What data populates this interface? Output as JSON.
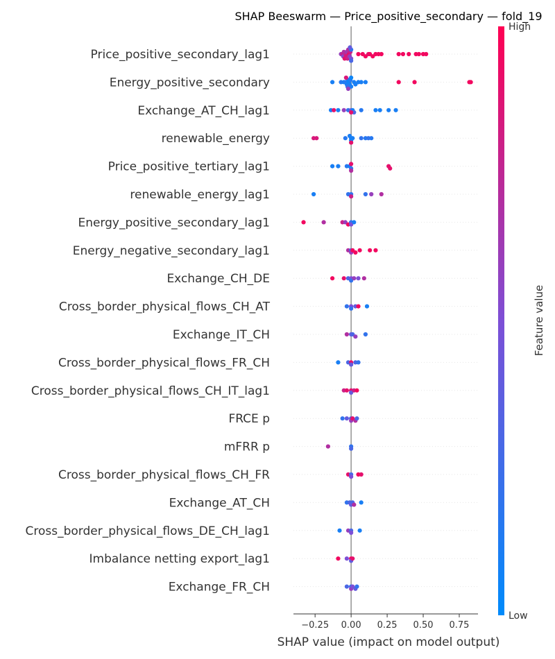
{
  "chart_data": {
    "type": "scatter",
    "subtype": "beeswarm",
    "title": "SHAP Beeswarm — Price_positive_secondary — fold_19",
    "xlabel": "SHAP value (impact on model output)",
    "ylabel": "",
    "xlim": [
      -0.4,
      0.88
    ],
    "x_ticks": [
      -0.25,
      0.0,
      0.25,
      0.5,
      0.75
    ],
    "x_tick_labels": [
      "−0.25",
      "0.00",
      "0.25",
      "0.50",
      "0.75"
    ],
    "grid": false,
    "legend": "none",
    "colorbar": {
      "label": "Feature value",
      "high_label": "High",
      "low_label": "Low",
      "low_color": "#008bfb",
      "high_color": "#ff0052"
    },
    "features": [
      {
        "name": "Price_positive_secondary_lag1",
        "points": [
          [
            -0.07,
            0.6
          ],
          [
            -0.06,
            0.8
          ],
          [
            -0.055,
            0.55
          ],
          [
            -0.05,
            0.7
          ],
          [
            -0.045,
            0.9
          ],
          [
            -0.04,
            0.75
          ],
          [
            -0.035,
            0.85
          ],
          [
            -0.03,
            0.65
          ],
          [
            -0.025,
            0.8
          ],
          [
            -0.02,
            0.7
          ],
          [
            -0.015,
            0.9
          ],
          [
            -0.01,
            0.6
          ],
          [
            -0.005,
            0.8
          ],
          [
            0.0,
            0.5
          ],
          [
            0.0,
            0.2
          ],
          [
            0.0,
            0.3
          ],
          [
            -0.008,
            0.4
          ],
          [
            0.05,
            0.95
          ],
          [
            0.08,
            0.95
          ],
          [
            0.1,
            0.95
          ],
          [
            0.12,
            0.9
          ],
          [
            0.13,
            0.95
          ],
          [
            0.15,
            0.95
          ],
          [
            0.17,
            0.95
          ],
          [
            0.19,
            0.95
          ],
          [
            0.21,
            0.95
          ],
          [
            0.33,
            0.95
          ],
          [
            0.36,
            0.95
          ],
          [
            0.4,
            0.95
          ],
          [
            0.45,
            0.95
          ],
          [
            0.47,
            0.95
          ],
          [
            0.5,
            0.95
          ],
          [
            0.52,
            0.95
          ]
        ]
      },
      {
        "name": "Energy_positive_secondary",
        "points": [
          [
            -0.13,
            0.1
          ],
          [
            -0.07,
            0.15
          ],
          [
            -0.05,
            0.1
          ],
          [
            -0.04,
            0.15
          ],
          [
            -0.03,
            0.1
          ],
          [
            -0.02,
            0.1
          ],
          [
            -0.015,
            0.05
          ],
          [
            -0.01,
            0.1
          ],
          [
            -0.005,
            0.15
          ],
          [
            0.0,
            0.1
          ],
          [
            0.0,
            0.05
          ],
          [
            -0.025,
            0.2
          ],
          [
            0.02,
            0.1
          ],
          [
            0.03,
            0.1
          ],
          [
            0.05,
            0.1
          ],
          [
            0.07,
            0.1
          ],
          [
            0.1,
            0.1
          ],
          [
            -0.035,
            0.85
          ],
          [
            -0.02,
            0.6
          ],
          [
            0.33,
            0.95
          ],
          [
            0.44,
            0.95
          ],
          [
            0.82,
            0.95
          ],
          [
            0.83,
            0.95
          ]
        ]
      },
      {
        "name": "Exchange_AT_CH_lag1",
        "points": [
          [
            -0.14,
            0.1
          ],
          [
            -0.12,
            0.9
          ],
          [
            -0.09,
            0.1
          ],
          [
            -0.05,
            0.6
          ],
          [
            -0.02,
            0.2
          ],
          [
            0.0,
            0.5
          ],
          [
            0.01,
            0.1
          ],
          [
            0.02,
            0.3
          ],
          [
            0.07,
            0.15
          ],
          [
            0.17,
            0.1
          ],
          [
            0.2,
            0.1
          ],
          [
            0.26,
            0.1
          ],
          [
            0.31,
            0.1
          ],
          [
            0.0,
            0.9
          ]
        ]
      },
      {
        "name": "renewable_energy",
        "points": [
          [
            -0.26,
            0.85
          ],
          [
            -0.24,
            0.85
          ],
          [
            -0.04,
            0.15
          ],
          [
            0.0,
            0.2
          ],
          [
            0.0,
            0.05
          ],
          [
            -0.01,
            0.1
          ],
          [
            0.01,
            0.1
          ],
          [
            0.07,
            0.2
          ],
          [
            0.1,
            0.15
          ],
          [
            0.12,
            0.2
          ],
          [
            0.14,
            0.15
          ],
          [
            0.0,
            0.9
          ]
        ]
      },
      {
        "name": "Price_positive_tertiary_lag1",
        "points": [
          [
            -0.13,
            0.1
          ],
          [
            -0.09,
            0.1
          ],
          [
            -0.03,
            0.15
          ],
          [
            -0.01,
            0.1
          ],
          [
            0.0,
            0.2
          ],
          [
            0.0,
            0.9
          ],
          [
            0.0,
            0.7
          ],
          [
            0.26,
            0.9
          ],
          [
            0.27,
            0.9
          ]
        ]
      },
      {
        "name": "renewable_energy_lag1",
        "points": [
          [
            -0.26,
            0.1
          ],
          [
            -0.02,
            0.2
          ],
          [
            0.0,
            0.2
          ],
          [
            0.0,
            0.8
          ],
          [
            0.1,
            0.2
          ],
          [
            0.14,
            0.6
          ],
          [
            0.21,
            0.7
          ]
        ]
      },
      {
        "name": "Energy_positive_secondary_lag1",
        "points": [
          [
            -0.33,
            0.95
          ],
          [
            -0.19,
            0.7
          ],
          [
            -0.06,
            0.8
          ],
          [
            -0.04,
            0.6
          ],
          [
            -0.02,
            0.95
          ],
          [
            0.0,
            0.2
          ],
          [
            0.0,
            0.5
          ],
          [
            0.02,
            0.1
          ]
        ]
      },
      {
        "name": "Energy_negative_secondary_lag1",
        "points": [
          [
            -0.02,
            0.7
          ],
          [
            0.0,
            0.3
          ],
          [
            0.0,
            0.6
          ],
          [
            0.01,
            0.95
          ],
          [
            0.03,
            0.95
          ],
          [
            0.06,
            0.95
          ],
          [
            0.13,
            0.95
          ],
          [
            0.17,
            0.95
          ]
        ]
      },
      {
        "name": "Exchange_CH_DE",
        "points": [
          [
            -0.13,
            0.95
          ],
          [
            -0.05,
            0.9
          ],
          [
            -0.02,
            0.3
          ],
          [
            0.0,
            0.5
          ],
          [
            0.0,
            0.2
          ],
          [
            0.02,
            0.6
          ],
          [
            0.05,
            0.5
          ],
          [
            0.09,
            0.7
          ]
        ]
      },
      {
        "name": "Cross_border_physical_flows_CH_AT",
        "points": [
          [
            -0.03,
            0.2
          ],
          [
            0.0,
            0.5
          ],
          [
            0.0,
            0.2
          ],
          [
            0.03,
            0.4
          ],
          [
            0.05,
            0.95
          ],
          [
            0.11,
            0.1
          ]
        ]
      },
      {
        "name": "Exchange_IT_CH",
        "points": [
          [
            -0.03,
            0.7
          ],
          [
            0.0,
            0.4
          ],
          [
            0.01,
            0.3
          ],
          [
            0.03,
            0.6
          ],
          [
            0.1,
            0.2
          ]
        ]
      },
      {
        "name": "Cross_border_physical_flows_FR_CH",
        "points": [
          [
            -0.09,
            0.1
          ],
          [
            -0.02,
            0.3
          ],
          [
            0.0,
            0.9
          ],
          [
            0.0,
            0.4
          ],
          [
            0.03,
            0.3
          ],
          [
            0.05,
            0.2
          ]
        ]
      },
      {
        "name": "Cross_border_physical_flows_CH_IT_lag1",
        "points": [
          [
            -0.05,
            0.8
          ],
          [
            -0.03,
            0.9
          ],
          [
            0.0,
            0.9
          ],
          [
            0.0,
            0.4
          ],
          [
            0.02,
            0.8
          ],
          [
            0.04,
            0.95
          ]
        ]
      },
      {
        "name": "FRCE p",
        "points": [
          [
            -0.06,
            0.2
          ],
          [
            -0.03,
            0.4
          ],
          [
            0.0,
            0.3
          ],
          [
            0.0,
            0.6
          ],
          [
            0.01,
            0.9
          ],
          [
            0.03,
            0.7
          ],
          [
            0.04,
            0.3
          ]
        ]
      },
      {
        "name": "mFRR p",
        "points": [
          [
            -0.16,
            0.7
          ],
          [
            0.0,
            0.2
          ],
          [
            0.0,
            0.3
          ]
        ]
      },
      {
        "name": "Cross_border_physical_flows_CH_FR",
        "points": [
          [
            -0.02,
            0.9
          ],
          [
            0.0,
            0.3
          ],
          [
            0.0,
            0.5
          ],
          [
            0.05,
            0.95
          ],
          [
            0.07,
            0.9
          ]
        ]
      },
      {
        "name": "Exchange_AT_CH",
        "points": [
          [
            -0.03,
            0.2
          ],
          [
            -0.01,
            0.3
          ],
          [
            0.0,
            0.4
          ],
          [
            0.01,
            0.3
          ],
          [
            0.02,
            0.7
          ],
          [
            0.07,
            0.1
          ]
        ]
      },
      {
        "name": "Cross_border_physical_flows_DE_CH_lag1",
        "points": [
          [
            -0.08,
            0.1
          ],
          [
            -0.02,
            0.6
          ],
          [
            0.0,
            0.3
          ],
          [
            0.0,
            0.5
          ],
          [
            0.06,
            0.1
          ]
        ]
      },
      {
        "name": "Imbalance netting export_lag1",
        "points": [
          [
            -0.09,
            0.95
          ],
          [
            -0.03,
            0.5
          ],
          [
            0.0,
            0.95
          ],
          [
            0.0,
            0.4
          ],
          [
            0.01,
            0.9
          ]
        ]
      },
      {
        "name": "Exchange_FR_CH",
        "points": [
          [
            -0.03,
            0.3
          ],
          [
            0.0,
            0.2
          ],
          [
            0.0,
            0.6
          ],
          [
            0.01,
            0.5
          ],
          [
            0.03,
            0.4
          ],
          [
            0.04,
            0.2
          ]
        ]
      }
    ]
  }
}
